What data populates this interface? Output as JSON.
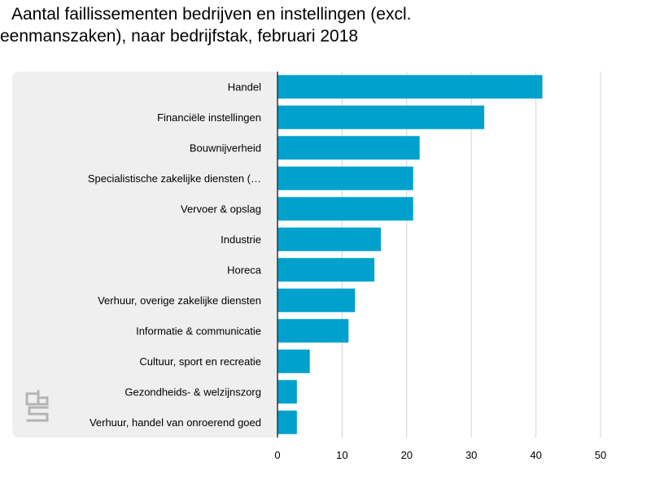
{
  "chart_data": {
    "type": "bar",
    "orientation": "horizontal",
    "title": "Aantal faillissementen bedrijven en instellingen (excl. eenmanszaken), naar bedrijfstak, februari 2018",
    "categories": [
      "Handel",
      "Financiële instellingen",
      "Bouwnijverheid",
      "Specialistische zakelijke diensten (…",
      "Vervoer & opslag",
      "Industrie",
      "Horeca",
      "Verhuur, overige zakelijke diensten",
      "Informatie & communicatie",
      "Cultuur, sport en recreatie",
      "Gezondheids- & welzijnszorg",
      "Verhuur, handel van onroerend goed"
    ],
    "values": [
      41,
      32,
      22,
      21,
      21,
      16,
      15,
      12,
      11,
      5,
      3,
      3
    ],
    "xlim": [
      0,
      50
    ],
    "xticks": [
      "0",
      "10",
      "20",
      "30",
      "40",
      "50"
    ],
    "grid": true,
    "bar_color": "#00A1CD",
    "label_panel_color": "#EFEFEF"
  },
  "logo": {
    "name": "cbs-logo",
    "color": "#B4B4B4"
  }
}
